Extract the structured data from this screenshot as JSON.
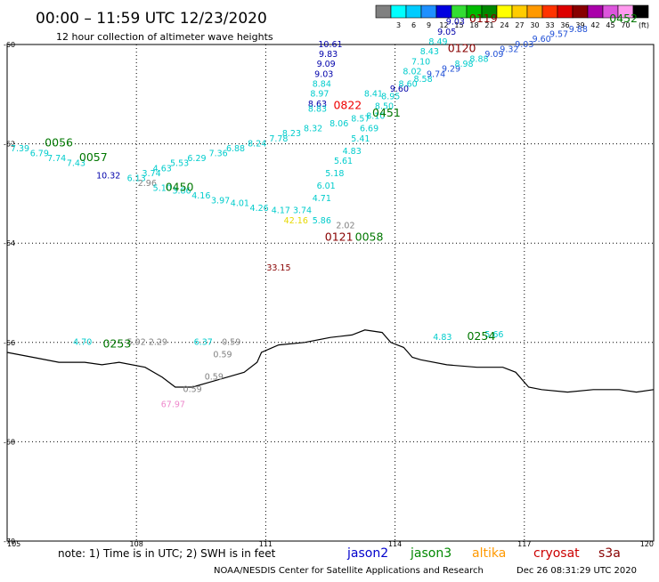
{
  "header": {
    "title": "00:00 – 11:59 UTC 12/23/2020",
    "subtitle": "12 hour collection of altimeter wave heights"
  },
  "map": {
    "lon_range": [
      105,
      120
    ],
    "lat_range": [
      -60,
      -70
    ],
    "lon_ticks": [
      "105",
      "108",
      "111",
      "114",
      "117",
      "120"
    ],
    "lat_ticks": [
      "-60",
      "-62",
      "-64",
      "-66",
      "-68",
      "-70"
    ],
    "grid": true,
    "coastline": [
      [
        105.0,
        -66.2
      ],
      [
        105.6,
        -66.3
      ],
      [
        106.2,
        -66.4
      ],
      [
        106.8,
        -66.4
      ],
      [
        107.2,
        -66.45
      ],
      [
        107.6,
        -66.4
      ],
      [
        108.2,
        -66.5
      ],
      [
        108.6,
        -66.7
      ],
      [
        108.9,
        -66.9
      ],
      [
        109.3,
        -66.9
      ],
      [
        109.7,
        -66.8
      ],
      [
        110.1,
        -66.7
      ],
      [
        110.5,
        -66.6
      ],
      [
        110.8,
        -66.4
      ],
      [
        110.9,
        -66.2
      ],
      [
        111.3,
        -66.05
      ],
      [
        111.9,
        -66.0
      ],
      [
        112.5,
        -65.9
      ],
      [
        113.0,
        -65.85
      ],
      [
        113.3,
        -65.75
      ],
      [
        113.7,
        -65.8
      ],
      [
        113.9,
        -66.0
      ],
      [
        114.2,
        -66.1
      ],
      [
        114.4,
        -66.3
      ],
      [
        114.6,
        -66.35
      ],
      [
        115.2,
        -66.45
      ],
      [
        115.9,
        -66.5
      ],
      [
        116.5,
        -66.5
      ],
      [
        116.8,
        -66.6
      ],
      [
        117.1,
        -66.9
      ],
      [
        117.4,
        -66.95
      ],
      [
        118.0,
        -67.0
      ],
      [
        118.6,
        -66.95
      ],
      [
        119.2,
        -66.95
      ],
      [
        119.6,
        -67.0
      ],
      [
        120.0,
        -66.95
      ]
    ]
  },
  "scale": {
    "unit": "(ft)",
    "bins": [
      {
        "label": "",
        "color": "#808080"
      },
      {
        "label": "3",
        "color": "#00ffff"
      },
      {
        "label": "6",
        "color": "#00ccff"
      },
      {
        "label": "9",
        "color": "#1e90ff"
      },
      {
        "label": "12",
        "color": "#0000e0"
      },
      {
        "label": "15",
        "color": "#33dd33"
      },
      {
        "label": "18",
        "color": "#00bb00"
      },
      {
        "label": "21",
        "color": "#008800"
      },
      {
        "label": "24",
        "color": "#ffff00"
      },
      {
        "label": "27",
        "color": "#ffcc00"
      },
      {
        "label": "30",
        "color": "#ff9900"
      },
      {
        "label": "33",
        "color": "#ff3300"
      },
      {
        "label": "36",
        "color": "#dd0000"
      },
      {
        "label": "39",
        "color": "#880000"
      },
      {
        "label": "42",
        "color": "#aa00aa"
      },
      {
        "label": "45",
        "color": "#dd55dd"
      },
      {
        "label": "70",
        "color": "#ff99ee"
      },
      {
        "label": "",
        "color": "#000000"
      }
    ]
  },
  "colors": {
    "cyan": "#00cccc",
    "navy": "#0000aa",
    "blue": "#1f4fd6",
    "green": "#007700",
    "gray": "#808080",
    "darkred": "#880000",
    "red": "#ee0000",
    "yellow": "#e6d800",
    "pink": "#ee88cc",
    "jason2": "#0000cc",
    "jason3": "#008800",
    "altika": "#ff9900",
    "cryosat": "#cc0000",
    "s3a": "#880000"
  },
  "observations": [
    {
      "text": "10.61",
      "lon": 112.5,
      "lat": -60.05,
      "color": "navy"
    },
    {
      "text": "9.83",
      "lon": 112.45,
      "lat": -60.25,
      "color": "navy"
    },
    {
      "text": "9.09",
      "lon": 112.4,
      "lat": -60.45,
      "color": "navy"
    },
    {
      "text": "9.03",
      "lon": 112.35,
      "lat": -60.65,
      "color": "navy"
    },
    {
      "text": "8.84",
      "lon": 112.3,
      "lat": -60.85,
      "color": "cyan"
    },
    {
      "text": "8.97",
      "lon": 112.25,
      "lat": -61.05,
      "color": "cyan"
    },
    {
      "text": "8.63",
      "lon": 112.2,
      "lat": -61.25,
      "color": "navy"
    },
    {
      "text": "8.83",
      "lon": 112.2,
      "lat": -61.35,
      "color": "cyan"
    },
    {
      "text": "8.57",
      "lon": 113.2,
      "lat": -61.55,
      "color": "cyan"
    },
    {
      "text": "8.06",
      "lon": 112.7,
      "lat": -61.65,
      "color": "cyan"
    },
    {
      "text": "8.32",
      "lon": 112.1,
      "lat": -61.75,
      "color": "cyan"
    },
    {
      "text": "8.23",
      "lon": 111.6,
      "lat": -61.85,
      "color": "cyan"
    },
    {
      "text": "7.78",
      "lon": 111.3,
      "lat": -61.95,
      "color": "cyan"
    },
    {
      "text": "8.24",
      "lon": 110.8,
      "lat": -62.05,
      "color": "cyan"
    },
    {
      "text": "6.88",
      "lon": 110.3,
      "lat": -62.15,
      "color": "cyan"
    },
    {
      "text": "7.36",
      "lon": 109.9,
      "lat": -62.25,
      "color": "cyan"
    },
    {
      "text": "6.29",
      "lon": 109.4,
      "lat": -62.35,
      "color": "cyan"
    },
    {
      "text": "5.53",
      "lon": 109.0,
      "lat": -62.45,
      "color": "cyan"
    },
    {
      "text": "4.63",
      "lon": 108.6,
      "lat": -62.55,
      "color": "cyan"
    },
    {
      "text": "3.74",
      "lon": 108.35,
      "lat": -62.65,
      "color": "cyan"
    },
    {
      "text": "6.13",
      "lon": 108.0,
      "lat": -62.75,
      "color": "cyan"
    },
    {
      "text": "10.32",
      "lon": 107.35,
      "lat": -62.7,
      "color": "navy"
    },
    {
      "text": "2.96",
      "lon": 108.25,
      "lat": -62.85,
      "color": "gray"
    },
    {
      "text": "5.10",
      "lon": 108.6,
      "lat": -62.95,
      "color": "cyan"
    },
    {
      "text": "3.86",
      "lon": 109.05,
      "lat": -63.0,
      "color": "cyan"
    },
    {
      "text": "4.16",
      "lon": 109.5,
      "lat": -63.1,
      "color": "cyan"
    },
    {
      "text": "3.97",
      "lon": 109.95,
      "lat": -63.2,
      "color": "cyan"
    },
    {
      "text": "4.01",
      "lon": 110.4,
      "lat": -63.25,
      "color": "cyan"
    },
    {
      "text": "4.26",
      "lon": 110.85,
      "lat": -63.35,
      "color": "cyan"
    },
    {
      "text": "4.17",
      "lon": 111.35,
      "lat": -63.4,
      "color": "cyan"
    },
    {
      "text": "3.74",
      "lon": 111.85,
      "lat": -63.4,
      "color": "cyan"
    },
    {
      "text": "42.16",
      "lon": 111.7,
      "lat": -63.6,
      "color": "yellow"
    },
    {
      "text": "5.86",
      "lon": 112.3,
      "lat": -63.6,
      "color": "cyan"
    },
    {
      "text": "2.02",
      "lon": 112.85,
      "lat": -63.7,
      "color": "gray"
    },
    {
      "text": "4.71",
      "lon": 112.3,
      "lat": -63.15,
      "color": "cyan"
    },
    {
      "text": "6.01",
      "lon": 112.4,
      "lat": -62.9,
      "color": "cyan"
    },
    {
      "text": "5.18",
      "lon": 112.6,
      "lat": -62.65,
      "color": "cyan"
    },
    {
      "text": "5.61",
      "lon": 112.8,
      "lat": -62.4,
      "color": "cyan"
    },
    {
      "text": "4.83",
      "lon": 113.0,
      "lat": -62.2,
      "color": "cyan"
    },
    {
      "text": "5.41",
      "lon": 113.2,
      "lat": -61.95,
      "color": "cyan"
    },
    {
      "text": "6.69",
      "lon": 113.4,
      "lat": -61.75,
      "color": "cyan"
    },
    {
      "text": "8.10",
      "lon": 113.55,
      "lat": -61.5,
      "color": "cyan"
    },
    {
      "text": "8.50",
      "lon": 113.75,
      "lat": -61.3,
      "color": "cyan"
    },
    {
      "text": "8.95",
      "lon": 113.9,
      "lat": -61.1,
      "color": "cyan"
    },
    {
      "text": "9.60",
      "lon": 114.1,
      "lat": -60.95,
      "color": "navy"
    },
    {
      "text": "8.41",
      "lon": 113.5,
      "lat": -61.05,
      "color": "cyan"
    },
    {
      "text": "8.60",
      "lon": 114.3,
      "lat": -60.85,
      "color": "cyan"
    },
    {
      "text": "8.58",
      "lon": 114.65,
      "lat": -60.75,
      "color": "cyan"
    },
    {
      "text": "9.74",
      "lon": 114.95,
      "lat": -60.65,
      "color": "blue"
    },
    {
      "text": "9.29",
      "lon": 115.3,
      "lat": -60.55,
      "color": "blue"
    },
    {
      "text": "8.98",
      "lon": 115.6,
      "lat": -60.45,
      "color": "cyan"
    },
    {
      "text": "8.88",
      "lon": 115.95,
      "lat": -60.35,
      "color": "cyan"
    },
    {
      "text": "9.09",
      "lon": 116.3,
      "lat": -60.25,
      "color": "blue"
    },
    {
      "text": "9.32",
      "lon": 116.65,
      "lat": -60.15,
      "color": "blue"
    },
    {
      "text": "9.03",
      "lon": 117.0,
      "lat": -60.05,
      "color": "blue"
    },
    {
      "text": "9.60",
      "lon": 117.4,
      "lat": -59.95,
      "color": "blue"
    },
    {
      "text": "9.57",
      "lon": 117.8,
      "lat": -59.85,
      "color": "blue"
    },
    {
      "text": "9.88",
      "lon": 118.25,
      "lat": -59.75,
      "color": "blue"
    },
    {
      "text": "8.02",
      "lon": 114.4,
      "lat": -60.6,
      "color": "cyan"
    },
    {
      "text": "7.10",
      "lon": 114.6,
      "lat": -60.4,
      "color": "cyan"
    },
    {
      "text": "8.43",
      "lon": 114.8,
      "lat": -60.2,
      "color": "cyan"
    },
    {
      "text": "8.49",
      "lon": 115.0,
      "lat": -60.0,
      "color": "cyan"
    },
    {
      "text": "9.05",
      "lon": 115.2,
      "lat": -59.8,
      "color": "navy"
    },
    {
      "text": "9.03",
      "lon": 115.4,
      "lat": -59.6,
      "color": "navy"
    },
    {
      "text": "7.39",
      "lon": 105.3,
      "lat": -62.15,
      "color": "cyan"
    },
    {
      "text": "6.79",
      "lon": 105.75,
      "lat": -62.25,
      "color": "cyan"
    },
    {
      "text": "7.74",
      "lon": 106.15,
      "lat": -62.35,
      "color": "cyan"
    },
    {
      "text": "7.43",
      "lon": 106.6,
      "lat": -62.45,
      "color": "cyan"
    },
    {
      "text": "33.15",
      "lon": 111.3,
      "lat": -64.55,
      "color": "darkred"
    },
    {
      "text": "4.70",
      "lon": 106.75,
      "lat": -66.05,
      "color": "cyan"
    },
    {
      "text": "5.92",
      "lon": 108.0,
      "lat": -66.05,
      "color": "gray"
    },
    {
      "text": "2.29",
      "lon": 108.5,
      "lat": -66.05,
      "color": "gray"
    },
    {
      "text": "6.37",
      "lon": 109.55,
      "lat": -66.05,
      "color": "cyan"
    },
    {
      "text": "0.59",
      "lon": 110.2,
      "lat": -66.05,
      "color": "gray"
    },
    {
      "text": "0.59",
      "lon": 110.0,
      "lat": -66.3,
      "color": "gray"
    },
    {
      "text": "0.59",
      "lon": 109.8,
      "lat": -66.75,
      "color": "gray"
    },
    {
      "text": "0.59",
      "lon": 109.3,
      "lat": -67.0,
      "color": "gray"
    },
    {
      "text": "67.97",
      "lon": 108.85,
      "lat": -67.3,
      "color": "pink"
    },
    {
      "text": "4.83",
      "lon": 115.1,
      "lat": -65.95,
      "color": "cyan"
    },
    {
      "text": "5.66",
      "lon": 116.3,
      "lat": -65.9,
      "color": "cyan"
    }
  ],
  "pass_labels": [
    {
      "text": "0119",
      "lon": 116.05,
      "lat": -59.55,
      "color": "darkred"
    },
    {
      "text": "0452",
      "lon": 119.3,
      "lat": -59.55,
      "color": "green"
    },
    {
      "text": "0120",
      "lon": 115.55,
      "lat": -60.15,
      "color": "darkred"
    },
    {
      "text": "0822",
      "lon": 112.9,
      "lat": -61.3,
      "color": "red"
    },
    {
      "text": "0451",
      "lon": 113.8,
      "lat": -61.45,
      "color": "green"
    },
    {
      "text": "0056",
      "lon": 106.2,
      "lat": -62.05,
      "color": "green"
    },
    {
      "text": "0057",
      "lon": 107.0,
      "lat": -62.35,
      "color": "green"
    },
    {
      "text": "0450",
      "lon": 109.0,
      "lat": -62.95,
      "color": "green"
    },
    {
      "text": "0121",
      "lon": 112.7,
      "lat": -63.95,
      "color": "darkred"
    },
    {
      "text": "0058",
      "lon": 113.4,
      "lat": -63.95,
      "color": "green"
    },
    {
      "text": "0253",
      "lon": 107.55,
      "lat": -66.1,
      "color": "green"
    },
    {
      "text": "0254",
      "lon": 116.0,
      "lat": -65.95,
      "color": "green"
    }
  ],
  "footer": {
    "note": "note: 1) Time is in UTC; 2) SWH is in feet",
    "satellites": [
      {
        "name": "jason2",
        "color": "jason2"
      },
      {
        "name": "jason3",
        "color": "jason3"
      },
      {
        "name": "altika",
        "color": "altika"
      },
      {
        "name": "cryosat",
        "color": "cryosat"
      },
      {
        "name": "s3a",
        "color": "s3a"
      }
    ],
    "credit": "NOAA/NESDIS Center for Satellite Applications and Research",
    "timestamp": "Dec 26 08:31:29 UTC 2020"
  }
}
